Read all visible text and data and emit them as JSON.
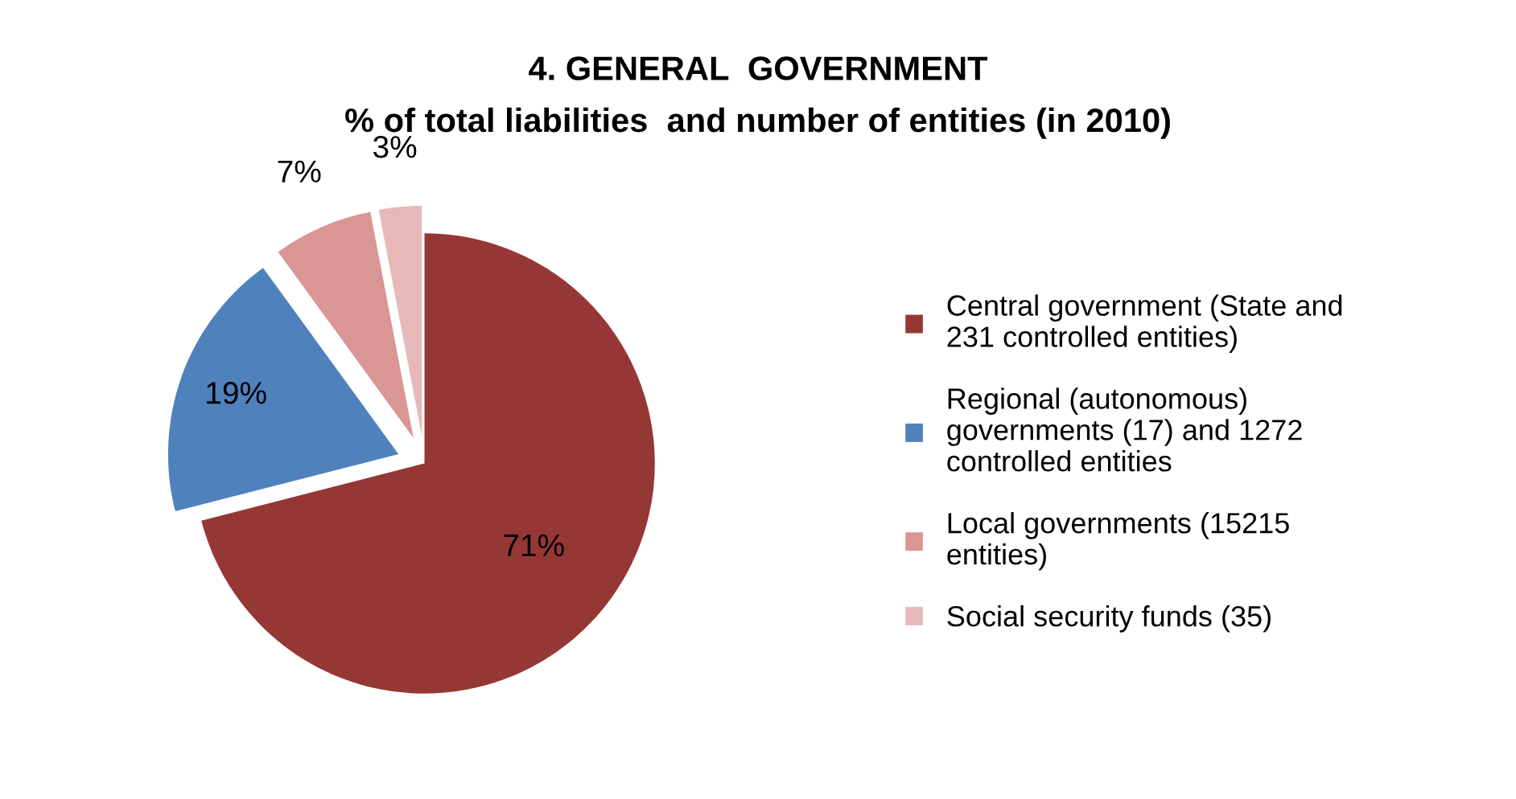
{
  "chart_data": {
    "type": "pie",
    "title": "4. GENERAL  GOVERNMENT",
    "subtitle": "% of total liabilities  and number of entities (in 2010)",
    "categories": [
      "Central government (State and\n231 controlled entities)",
      "Regional (autonomous)\ngovernments (17) and 1272\ncontrolled entities",
      "Local governments (15215\nentities)",
      "Social security funds (35)"
    ],
    "values": [
      71,
      19,
      7,
      3
    ],
    "value_labels": [
      "71%",
      "19%",
      "7%",
      "3%"
    ],
    "colors": [
      "#953735",
      "#4f81bd",
      "#d99694",
      "#e6b9b8"
    ],
    "legend": "right"
  }
}
